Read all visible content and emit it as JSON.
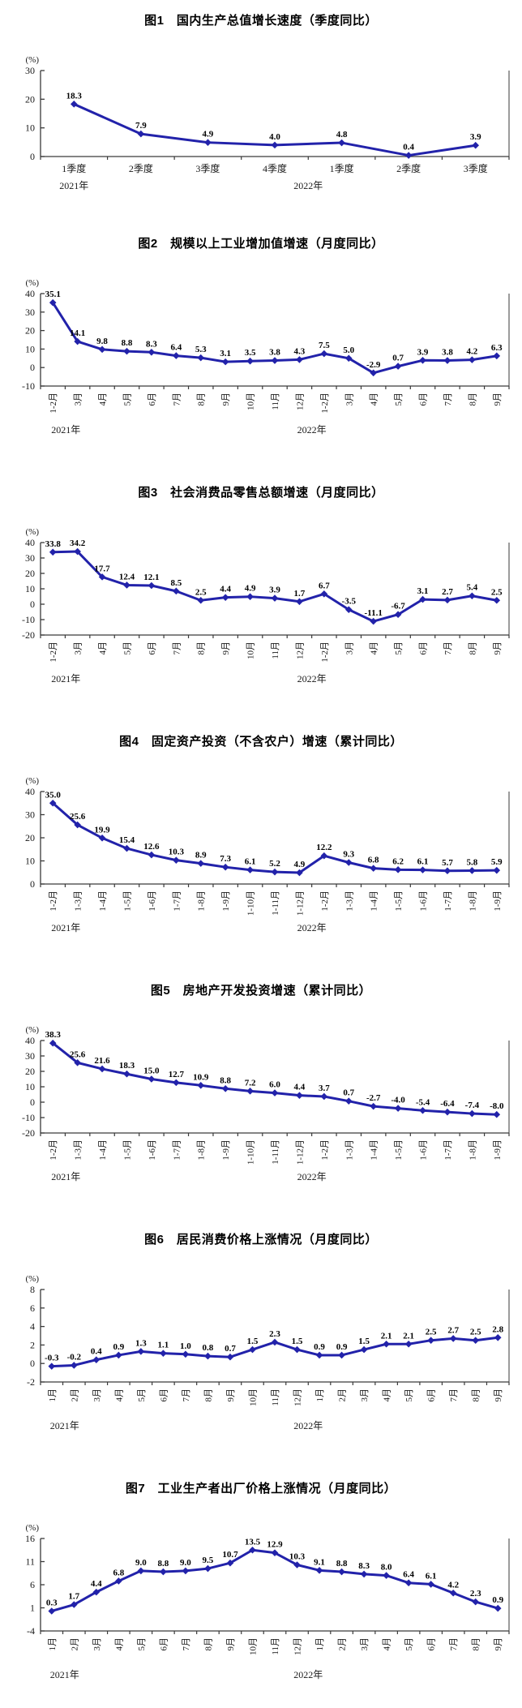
{
  "page": {
    "background_color": "#FFFFFF"
  },
  "style": {
    "line_color": "#2222AA",
    "marker_color": "#2222AA",
    "data_label_color": "#000000",
    "axis_color": "#3A3A3A",
    "tick_label_color": "#1A1A1A"
  },
  "chart_data": [
    {
      "type": "line",
      "title": "图1　国内生产总值增长速度（季度同比）",
      "unit_label": "(%)",
      "categories": [
        "1季度",
        "2季度",
        "3季度",
        "4季度",
        "1季度",
        "2季度",
        "3季度"
      ],
      "values": [
        18.3,
        7.9,
        4.9,
        4.0,
        4.8,
        0.4,
        3.9
      ],
      "point_labels": [
        "18.3",
        "7.9",
        "4.9",
        "4.0",
        "4.8",
        "0.4",
        "3.9"
      ],
      "ylim": [
        0,
        30
      ],
      "yticks": [
        0,
        10,
        20,
        30
      ],
      "x_labels_rotated": false,
      "grid": false,
      "legend": "none",
      "year_marks": [
        {
          "label": "2021年",
          "index": 0
        },
        {
          "label": "2022年",
          "index": 4
        }
      ]
    },
    {
      "type": "line",
      "title": "图2　规模以上工业增加值增速（月度同比）",
      "unit_label": "(%)",
      "categories": [
        "1-2月",
        "3月",
        "4月",
        "5月",
        "6月",
        "7月",
        "8月",
        "9月",
        "10月",
        "11月",
        "12月",
        "1-2月",
        "3月",
        "4月",
        "5月",
        "6月",
        "7月",
        "8月",
        "9月"
      ],
      "values": [
        35.1,
        14.1,
        9.8,
        8.8,
        8.3,
        6.4,
        5.3,
        3.1,
        3.5,
        3.8,
        4.3,
        7.5,
        5.0,
        -2.9,
        0.7,
        3.9,
        3.8,
        4.2,
        6.3
      ],
      "point_labels": [
        "35.1",
        "14.1",
        "9.8",
        "8.8",
        "8.3",
        "6.4",
        "5.3",
        "3.1",
        "3.5",
        "3.8",
        "4.3",
        "7.5",
        "5.0",
        "-2.9",
        "0.7",
        "3.9",
        "3.8",
        "4.2",
        "6.3"
      ],
      "ylim": [
        -10,
        40
      ],
      "yticks": [
        -10,
        0,
        10,
        20,
        30,
        40
      ],
      "x_labels_rotated": true,
      "grid": false,
      "legend": "none",
      "year_marks": [
        {
          "label": "2021年",
          "index": 0
        },
        {
          "label": "2022年",
          "index": 11
        }
      ]
    },
    {
      "type": "line",
      "title": "图3　社会消费品零售总额增速（月度同比）",
      "unit_label": "(%)",
      "categories": [
        "1-2月",
        "3月",
        "4月",
        "5月",
        "6月",
        "7月",
        "8月",
        "9月",
        "10月",
        "11月",
        "12月",
        "1-2月",
        "3月",
        "4月",
        "5月",
        "6月",
        "7月",
        "8月",
        "9月"
      ],
      "values": [
        33.8,
        34.2,
        17.7,
        12.4,
        12.1,
        8.5,
        2.5,
        4.4,
        4.9,
        3.9,
        1.7,
        6.7,
        -3.5,
        -11.1,
        -6.7,
        3.1,
        2.7,
        5.4,
        2.5
      ],
      "point_labels": [
        "33.8",
        "34.2",
        "17.7",
        "12.4",
        "12.1",
        "8.5",
        "2.5",
        "4.4",
        "4.9",
        "3.9",
        "1.7",
        "6.7",
        "-3.5",
        "-11.1",
        "-6.7",
        "3.1",
        "2.7",
        "5.4",
        "2.5"
      ],
      "ylim": [
        -20,
        40
      ],
      "yticks": [
        -20,
        -10,
        0,
        10,
        20,
        30,
        40
      ],
      "x_labels_rotated": true,
      "grid": false,
      "legend": "none",
      "year_marks": [
        {
          "label": "2021年",
          "index": 0
        },
        {
          "label": "2022年",
          "index": 11
        }
      ]
    },
    {
      "type": "line",
      "title": "图4　固定资产投资（不含农户）增速（累计同比）",
      "unit_label": "(%)",
      "categories": [
        "1-2月",
        "1-3月",
        "1-4月",
        "1-5月",
        "1-6月",
        "1-7月",
        "1-8月",
        "1-9月",
        "1-10月",
        "1-11月",
        "1-12月",
        "1-2月",
        "1-3月",
        "1-4月",
        "1-5月",
        "1-6月",
        "1-7月",
        "1-8月",
        "1-9月"
      ],
      "values": [
        35.0,
        25.6,
        19.9,
        15.4,
        12.6,
        10.3,
        8.9,
        7.3,
        6.1,
        5.2,
        4.9,
        12.2,
        9.3,
        6.8,
        6.2,
        6.1,
        5.7,
        5.8,
        5.9
      ],
      "point_labels": [
        "35.0",
        "25.6",
        "19.9",
        "15.4",
        "12.6",
        "10.3",
        "8.9",
        "7.3",
        "6.1",
        "5.2",
        "4.9",
        "12.2",
        "9.3",
        "6.8",
        "6.2",
        "6.1",
        "5.7",
        "5.8",
        "5.9"
      ],
      "ylim": [
        0,
        40
      ],
      "yticks": [
        0,
        10,
        20,
        30,
        40
      ],
      "x_labels_rotated": true,
      "grid": false,
      "legend": "none",
      "year_marks": [
        {
          "label": "2021年",
          "index": 0
        },
        {
          "label": "2022年",
          "index": 11
        }
      ]
    },
    {
      "type": "line",
      "title": "图5　房地产开发投资增速（累计同比）",
      "unit_label": "(%)",
      "categories": [
        "1-2月",
        "1-3月",
        "1-4月",
        "1-5月",
        "1-6月",
        "1-7月",
        "1-8月",
        "1-9月",
        "1-10月",
        "1-11月",
        "1-12月",
        "1-2月",
        "1-3月",
        "1-4月",
        "1-5月",
        "1-6月",
        "1-7月",
        "1-8月",
        "1-9月"
      ],
      "values": [
        38.3,
        25.6,
        21.6,
        18.3,
        15.0,
        12.7,
        10.9,
        8.8,
        7.2,
        6.0,
        4.4,
        3.7,
        0.7,
        -2.7,
        -4.0,
        -5.4,
        -6.4,
        -7.4,
        -8.0
      ],
      "point_labels": [
        "38.3",
        "25.6",
        "21.6",
        "18.3",
        "15.0",
        "12.7",
        "10.9",
        "8.8",
        "7.2",
        "6.0",
        "4.4",
        "3.7",
        "0.7",
        "-2.7",
        "-4.0",
        "-5.4",
        "-6.4",
        "-7.4",
        "-8.0"
      ],
      "ylim": [
        -20,
        40
      ],
      "yticks": [
        -20,
        -10,
        0,
        10,
        20,
        30,
        40
      ],
      "x_labels_rotated": true,
      "grid": false,
      "legend": "none",
      "year_marks": [
        {
          "label": "2021年",
          "index": 0
        },
        {
          "label": "2022年",
          "index": 11
        }
      ]
    },
    {
      "type": "line",
      "title": "图6　居民消费价格上涨情况（月度同比）",
      "unit_label": "(%)",
      "categories": [
        "1月",
        "2月",
        "3月",
        "4月",
        "5月",
        "6月",
        "7月",
        "8月",
        "9月",
        "10月",
        "11月",
        "12月",
        "1月",
        "2月",
        "3月",
        "4月",
        "5月",
        "6月",
        "7月",
        "8月",
        "9月"
      ],
      "values": [
        -0.3,
        -0.2,
        0.4,
        0.9,
        1.3,
        1.1,
        1.0,
        0.8,
        0.7,
        1.5,
        2.3,
        1.5,
        0.9,
        0.9,
        1.5,
        2.1,
        2.1,
        2.5,
        2.7,
        2.5,
        2.8
      ],
      "point_labels": [
        "-0.3",
        "-0.2",
        "0.4",
        "0.9",
        "1.3",
        "1.1",
        "1.0",
        "0.8",
        "0.7",
        "1.5",
        "2.3",
        "1.5",
        "0.9",
        "0.9",
        "1.5",
        "2.1",
        "2.1",
        "2.5",
        "2.7",
        "2.5",
        "2.8"
      ],
      "ylim": [
        -2,
        8
      ],
      "yticks": [
        -2,
        0,
        2,
        4,
        6,
        8
      ],
      "x_labels_rotated": true,
      "grid": false,
      "legend": "none",
      "year_marks": [
        {
          "label": "2021年",
          "index": 0
        },
        {
          "label": "2022年",
          "index": 12
        }
      ]
    },
    {
      "type": "line",
      "title": "图7　工业生产者出厂价格上涨情况（月度同比）",
      "unit_label": "(%)",
      "categories": [
        "1月",
        "2月",
        "3月",
        "4月",
        "5月",
        "6月",
        "7月",
        "8月",
        "9月",
        "10月",
        "11月",
        "12月",
        "1月",
        "2月",
        "3月",
        "4月",
        "5月",
        "6月",
        "7月",
        "8月",
        "9月"
      ],
      "values": [
        0.3,
        1.7,
        4.4,
        6.8,
        9.0,
        8.8,
        9.0,
        9.5,
        10.7,
        13.5,
        12.9,
        10.3,
        9.1,
        8.8,
        8.3,
        8.0,
        6.4,
        6.1,
        4.2,
        2.3,
        0.9
      ],
      "point_labels": [
        "0.3",
        "1.7",
        "4.4",
        "6.8",
        "9.0",
        "8.8",
        "9.0",
        "9.5",
        "10.7",
        "13.5",
        "12.9",
        "10.3",
        "9.1",
        "8.8",
        "8.3",
        "8.0",
        "6.4",
        "6.1",
        "4.2",
        "2.3",
        "0.9"
      ],
      "ylim": [
        -4,
        16
      ],
      "yticks": [
        -4,
        1,
        6,
        11,
        16
      ],
      "x_labels_rotated": true,
      "grid": false,
      "legend": "none",
      "year_marks": [
        {
          "label": "2021年",
          "index": 0
        },
        {
          "label": "2022年",
          "index": 12
        }
      ]
    }
  ]
}
